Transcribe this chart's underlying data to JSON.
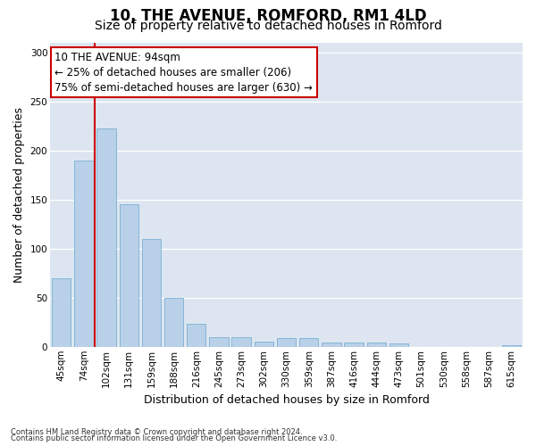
{
  "title1": "10, THE AVENUE, ROMFORD, RM1 4LD",
  "title2": "Size of property relative to detached houses in Romford",
  "xlabel": "Distribution of detached houses by size in Romford",
  "ylabel": "Number of detached properties",
  "categories": [
    "45sqm",
    "74sqm",
    "102sqm",
    "131sqm",
    "159sqm",
    "188sqm",
    "216sqm",
    "245sqm",
    "273sqm",
    "302sqm",
    "330sqm",
    "359sqm",
    "387sqm",
    "416sqm",
    "444sqm",
    "473sqm",
    "501sqm",
    "530sqm",
    "558sqm",
    "587sqm",
    "615sqm"
  ],
  "values": [
    70,
    190,
    222,
    145,
    110,
    50,
    23,
    10,
    10,
    5,
    9,
    9,
    4,
    4,
    4,
    3,
    0,
    0,
    0,
    0,
    2
  ],
  "bar_color": "#b8d0e8",
  "bar_edge_color": "#7aafd4",
  "vline_color": "#cc0000",
  "annotation_text": "10 THE AVENUE: 94sqm\n← 25% of detached houses are smaller (206)\n75% of semi-detached houses are larger (630) →",
  "annotation_box_color": "#ffffff",
  "annotation_box_edge": "#cc0000",
  "ylim": [
    0,
    310
  ],
  "yticks": [
    0,
    50,
    100,
    150,
    200,
    250,
    300
  ],
  "background_color": "#dde6f0",
  "footer1": "Contains HM Land Registry data © Crown copyright and database right 2024.",
  "footer2": "Contains public sector information licensed under the Open Government Licence v3.0.",
  "title_fontsize": 12,
  "subtitle_fontsize": 10,
  "axis_label_fontsize": 9,
  "tick_fontsize": 7.5,
  "annotation_fontsize": 8.5,
  "footer_fontsize": 6
}
